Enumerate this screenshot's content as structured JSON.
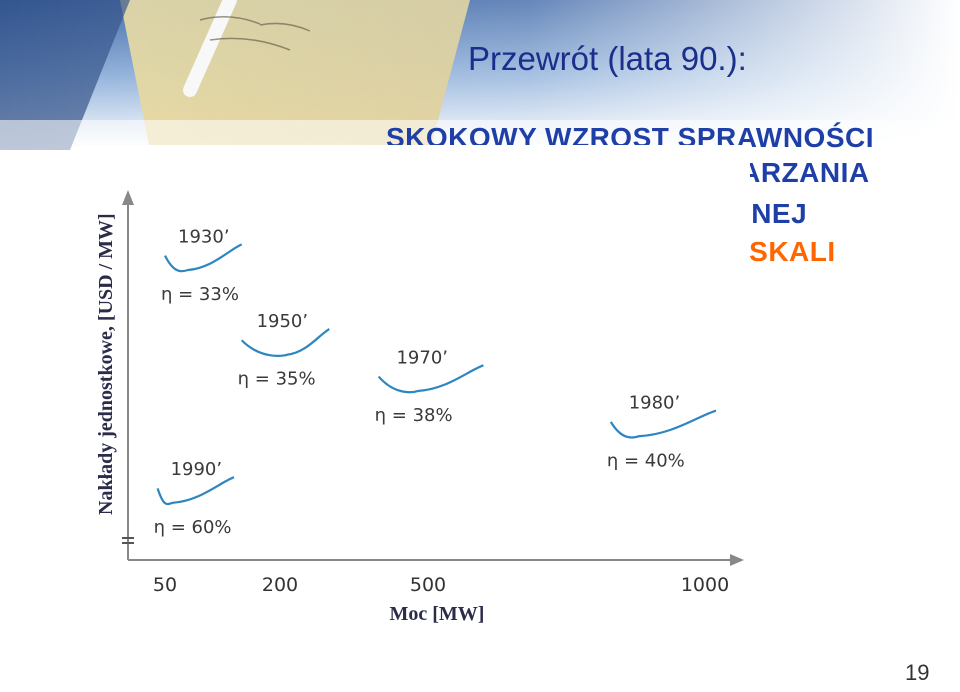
{
  "slide": {
    "title": "Przewrót (lata 90.):",
    "headline_lines": [
      "SKOKOWY WZROST SPRAWNOŚCI",
      "ENERGETYCZNEJ WYTWARZANIA",
      "ENERGII ELEKTRYCZNEJ"
    ],
    "accent_line": "PODWAŻENIE EFEKTU SKALI",
    "page_number": "19"
  },
  "colors": {
    "title": "#1a2f8c",
    "headline": "#1f3fa8",
    "accent": "#ff6600",
    "curve": "#2e86c1",
    "axis": "#888888"
  },
  "chart_data": {
    "type": "line",
    "xlabel": "Moc [MW]",
    "ylabel": "Nakłady jednostkowe, [USD / MW]",
    "x_ticks": [
      {
        "value": 50,
        "label": "50"
      },
      {
        "value": 200,
        "label": "200"
      },
      {
        "value": 500,
        "label": "500"
      },
      {
        "value": 1000,
        "label": "1000"
      }
    ],
    "y_ticks": [],
    "legend": "none",
    "grid": false,
    "series": [
      {
        "year": "1930’",
        "efficiency": "η = 33%",
        "x_min": 50,
        "x_max": 150,
        "x_optimum": 80,
        "y_level": 0.86
      },
      {
        "year": "1950’",
        "efficiency": "η = 35%",
        "x_min": 150,
        "x_max": 300,
        "x_optimum": 215,
        "y_level": 0.58
      },
      {
        "year": "1970’",
        "efficiency": "η = 38%",
        "x_min": 400,
        "x_max": 600,
        "x_optimum": 480,
        "y_level": 0.46
      },
      {
        "year": "1980’",
        "efficiency": "η = 40%",
        "x_min": 830,
        "x_max": 1020,
        "x_optimum": 880,
        "y_level": 0.31
      },
      {
        "year": "1990’",
        "efficiency": "η = 60%",
        "x_min": 40,
        "x_max": 140,
        "x_optimum": 60,
        "y_level": 0.09
      }
    ]
  }
}
